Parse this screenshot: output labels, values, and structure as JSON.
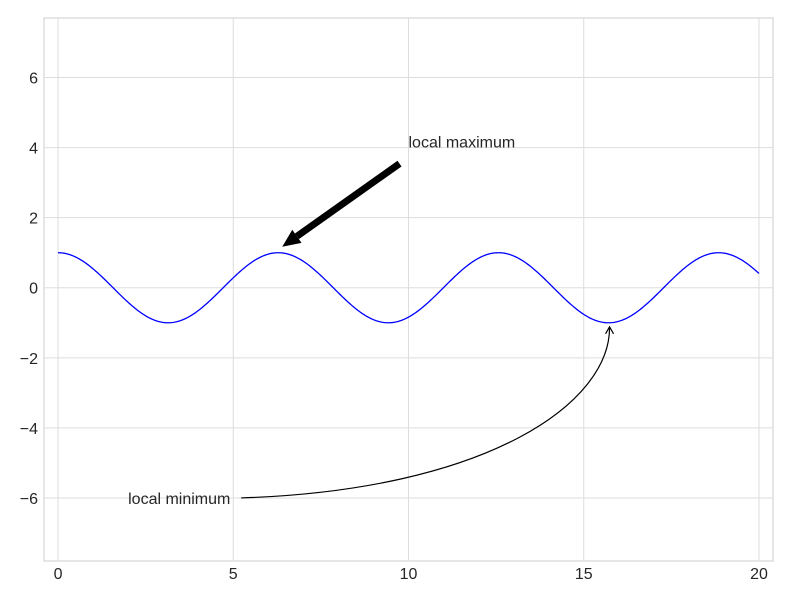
{
  "chart_data": {
    "type": "line",
    "title": "",
    "xlabel": "",
    "ylabel": "",
    "xlim": [
      -0.4,
      20.4
    ],
    "ylim": [
      -7.8,
      7.7
    ],
    "grid": true,
    "x_ticks": [
      0,
      5,
      10,
      15,
      20
    ],
    "x_tick_labels": [
      "0",
      "5",
      "10",
      "15",
      "20"
    ],
    "y_ticks": [
      -6,
      -4,
      -2,
      0,
      2,
      4,
      6
    ],
    "y_tick_labels": [
      "−6",
      "−4",
      "−2",
      "0",
      "2",
      "4",
      "6"
    ],
    "series": [
      {
        "function": "cos(x)",
        "x_start": 0,
        "x_end": 20,
        "color": "#0000ff"
      }
    ],
    "annotations": [
      {
        "text": "local maximum",
        "point": [
          6.283,
          1
        ],
        "text_at": [
          10,
          4
        ],
        "arrow": "thick straight black"
      },
      {
        "text": "local minimum",
        "point": [
          15.708,
          -1
        ],
        "text_at": [
          2,
          -6
        ],
        "arrow": "thin curved black"
      }
    ]
  }
}
